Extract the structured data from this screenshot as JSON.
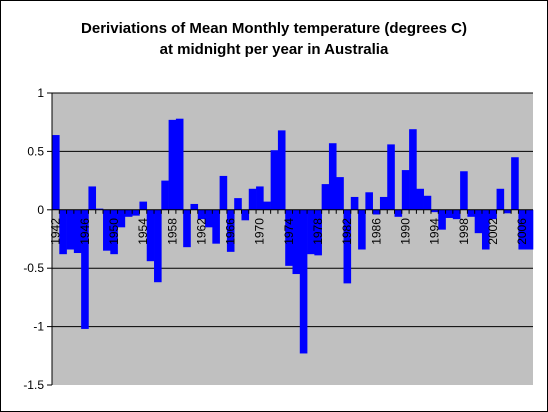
{
  "chart_data": {
    "type": "bar",
    "title_line1": "Deriviations of Mean Monthly temperature (degrees C)",
    "title_line2": "at midnight per year in Australia",
    "xlabel": "",
    "ylabel": "",
    "ylim": [
      -1.5,
      1
    ],
    "yticks": [
      1,
      0.5,
      0,
      -0.5,
      -1,
      -1.5
    ],
    "ytick_labels": [
      "1",
      "0.5",
      "0",
      "-0.5",
      "-1",
      "-1.5"
    ],
    "grid": "horizontal",
    "legend": "none",
    "bar_color": "#0000ff",
    "plot_background": "#c0c0c0",
    "x_tick_labels": [
      "1942",
      "1946",
      "1950",
      "1954",
      "1958",
      "1962",
      "1966",
      "1970",
      "1974",
      "1978",
      "1982",
      "1986",
      "1990",
      "1994",
      "1998",
      "2002",
      "2006"
    ],
    "categories": [
      1942,
      1943,
      1944,
      1945,
      1946,
      1947,
      1948,
      1949,
      1950,
      1951,
      1952,
      1953,
      1954,
      1955,
      1956,
      1957,
      1958,
      1959,
      1960,
      1961,
      1962,
      1963,
      1964,
      1965,
      1966,
      1967,
      1968,
      1969,
      1970,
      1971,
      1972,
      1973,
      1974,
      1975,
      1976,
      1977,
      1978,
      1979,
      1980,
      1981,
      1982,
      1983,
      1984,
      1985,
      1986,
      1987,
      1988,
      1989,
      1990,
      1991,
      1992,
      1993,
      1994,
      1995,
      1996,
      1997,
      1998,
      1999,
      2000,
      2001,
      2002,
      2003,
      2004,
      2005,
      2006,
      2007
    ],
    "values": [
      0.64,
      -0.38,
      -0.34,
      -0.37,
      -1.02,
      0.2,
      0.01,
      -0.35,
      -0.38,
      -0.15,
      -0.06,
      -0.05,
      0.07,
      -0.44,
      -0.62,
      0.25,
      0.77,
      0.78,
      -0.32,
      0.05,
      -0.08,
      -0.15,
      -0.29,
      0.29,
      -0.36,
      0.1,
      -0.09,
      0.18,
      0.2,
      0.07,
      0.51,
      0.68,
      -0.48,
      -0.55,
      -1.23,
      -0.38,
      -0.39,
      0.22,
      0.57,
      0.28,
      -0.63,
      0.11,
      -0.34,
      0.15,
      -0.04,
      0.11,
      0.56,
      -0.06,
      0.34,
      0.69,
      0.18,
      0.12,
      -0.02,
      -0.17,
      -0.07,
      -0.08,
      0.33,
      -0.06,
      -0.2,
      -0.34,
      -0.08,
      0.18,
      -0.03,
      0.45,
      -0.34,
      -0.34
    ]
  }
}
